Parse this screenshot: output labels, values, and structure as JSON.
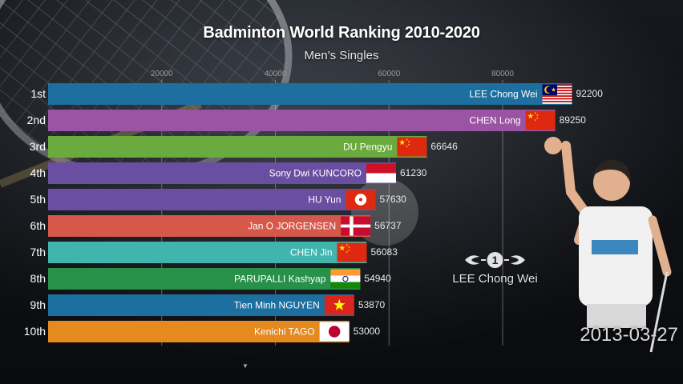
{
  "header": {
    "title": "Badminton World Ranking 2010-2020",
    "subtitle": "Men's Singles"
  },
  "colors": {
    "background": "#16191e",
    "gridline": "#c8c8c8",
    "tick_text": "#9a9a9a",
    "rank_text": "#ffffff"
  },
  "chart_data": {
    "type": "bar",
    "orientation": "horizontal",
    "title": "Badminton World Ranking 2010-2020",
    "subtitle": "Men's Singles",
    "x_ticks": [
      20000,
      40000,
      60000,
      80000
    ],
    "x_tick_labels": [
      "20000",
      "40000",
      "60000",
      "80000"
    ],
    "xlim": [
      0,
      92200
    ],
    "grid": "vertical",
    "ranks": [
      "1st",
      "2nd",
      "3rd",
      "4th",
      "5th",
      "6th",
      "7th",
      "8th",
      "9th",
      "10th"
    ],
    "categories": [
      "LEE Chong Wei",
      "CHEN Long",
      "DU Pengyu",
      "Sony Dwi KUNCORO",
      "HU Yun",
      "Jan O JORGENSEN",
      "CHEN Jin",
      "PARUPALLI Kashyap",
      "Tien Minh NGUYEN",
      "Kenichi TAGO"
    ],
    "values": [
      92200,
      89250,
      66646,
      61230,
      57630,
      56737,
      56083,
      54940,
      53870,
      53000
    ],
    "value_labels": [
      "92200",
      "89250",
      "66646",
      "61230",
      "57630",
      "56737",
      "56083",
      "54940",
      "53870",
      "53000"
    ],
    "bar_colors": [
      "#1c6f9f",
      "#9b53a3",
      "#6aaa3f",
      "#6a4ea2",
      "#6a4ea2",
      "#d6584a",
      "#3fb5ad",
      "#279049",
      "#1c6f9f",
      "#e58a1e"
    ],
    "flags": [
      "malaysia",
      "china",
      "china",
      "indonesia",
      "hong-kong",
      "denmark",
      "china",
      "india",
      "vietnam",
      "japan"
    ],
    "date": "2013-03-27",
    "leader": "LEE Chong Wei",
    "leader_rank_badge": "1"
  }
}
